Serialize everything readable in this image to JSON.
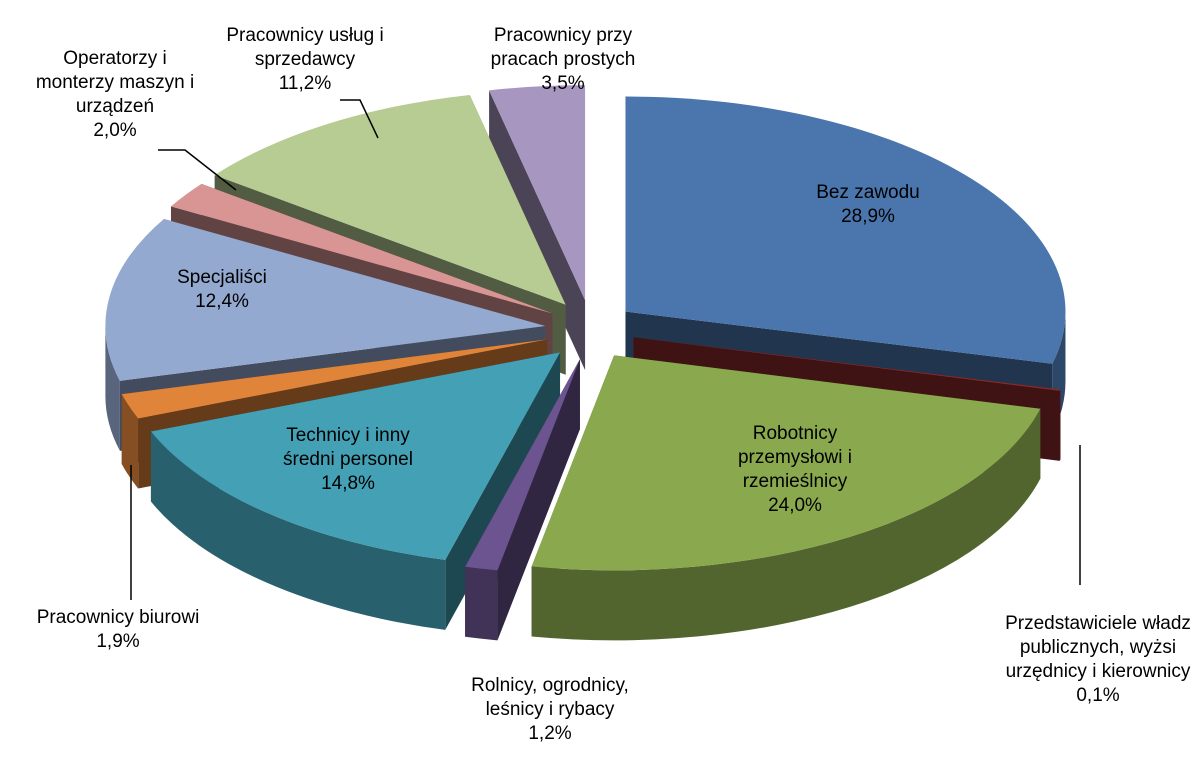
{
  "chart_data": {
    "type": "pie3d",
    "categories": [
      "Bez zawodu",
      "Przedstawiciele władz publicznych, wyżsi urzędnicy i kierownicy",
      "Robotnicy przemysłowi i rzemieślnicy",
      "Rolnicy, ogrodnicy, leśnicy i rybacy",
      "Technicy i inny średni personel",
      "Pracownicy biurowi",
      "Specjaliści",
      "Operatorzy i monterzy maszyn i urządzeń",
      "Pracownicy usług i sprzedawcy",
      "Pracownicy przy pracach prostych"
    ],
    "values": [
      28.9,
      0.1,
      24.0,
      1.2,
      14.8,
      1.9,
      12.4,
      2.0,
      11.2,
      3.5
    ],
    "value_labels": [
      "28,9%",
      "0,1%",
      "24,0%",
      "1,2%",
      "14,8%",
      "1,9%",
      "12,4%",
      "2,0%",
      "11,2%",
      "3,5%"
    ],
    "colors": [
      "#4a76ad",
      "#8b2b2b",
      "#8aa94e",
      "#6c5491",
      "#43a0b5",
      "#e0843a",
      "#94a9d0",
      "#d99594",
      "#b6cc92",
      "#a796c0"
    ]
  }
}
